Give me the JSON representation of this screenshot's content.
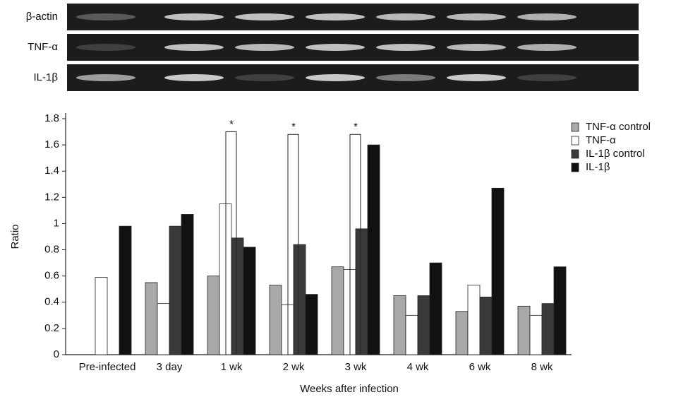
{
  "gel": {
    "labels": [
      "β-actin",
      "TNF-α",
      "IL-1β"
    ]
  },
  "chart_data": {
    "type": "bar",
    "x_label": "Weeks after infection",
    "y_label": "Ratio",
    "categories": [
      "Pre-infected",
      "3 day",
      "1 wk",
      "2 wk",
      "3 wk",
      "4 wk",
      "6 wk",
      "8 wk"
    ],
    "series": [
      {
        "name": "TNF-α control",
        "color": "#a8a8a8",
        "values": [
          0,
          0.55,
          0.6,
          0.53,
          0.67,
          0.45,
          0.33,
          0.37
        ]
      },
      {
        "name": "TNF-α",
        "color": "#ffffff",
        "values": [
          0.59,
          0.39,
          1.15,
          0.38,
          0.65,
          0.3,
          0.53,
          0.3
        ]
      },
      {
        "name": "IL-1β control",
        "color": "#3a3a3a",
        "values": [
          0,
          0.98,
          0.89,
          0.84,
          0.96,
          0.45,
          0.44,
          0.39
        ]
      },
      {
        "name": "IL-1β",
        "color": "#111111",
        "values": [
          0.98,
          1.07,
          0.82,
          0.46,
          1.6,
          0.7,
          1.27,
          0.67
        ]
      }
    ],
    "significance": {
      "label": "*",
      "values": [
        null,
        null,
        1.7,
        1.68,
        1.68,
        null,
        null,
        null
      ]
    },
    "ylim": [
      0,
      1.8
    ],
    "yticks": [
      0,
      0.2,
      0.4,
      0.6,
      0.8,
      1,
      1.2,
      1.4,
      1.6,
      1.8
    ],
    "legend": "top-right"
  }
}
